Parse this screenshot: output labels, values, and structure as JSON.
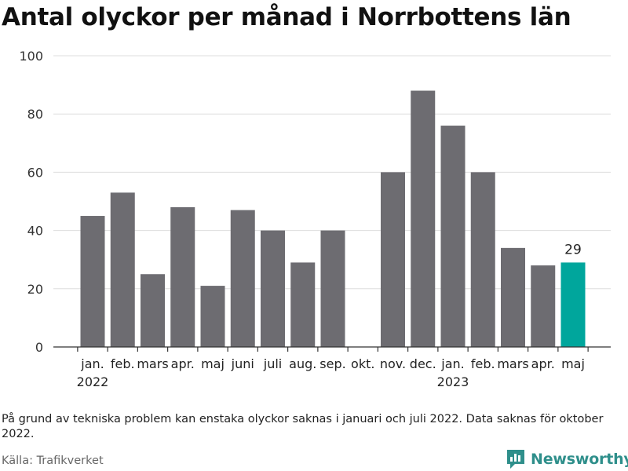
{
  "title": "Antal olyckor per månad i Norrbottens län",
  "note": "På grund av tekniska problem kan enstaka olyckor saknas i januari och juli 2022. Data saknas för oktober 2022.",
  "source": "Källa: Trafikverket",
  "brand": "Newsworthy",
  "colors": {
    "bar": "#6d6c71",
    "highlight": "#00a69c",
    "grid": "#dddddd",
    "axis": "#333333",
    "brand": "#2f8f8b"
  },
  "chart_data": {
    "type": "bar",
    "categories": [
      "jan.",
      "feb.",
      "mars",
      "apr.",
      "maj",
      "juni",
      "juli",
      "aug.",
      "sep.",
      "okt.",
      "nov.",
      "dec.",
      "jan.",
      "feb.",
      "mars",
      "apr.",
      "maj"
    ],
    "year_labels": [
      {
        "index": 0,
        "label": "2022"
      },
      {
        "index": 12,
        "label": "2023"
      }
    ],
    "values": [
      45,
      53,
      25,
      48,
      21,
      47,
      40,
      29,
      40,
      null,
      60,
      88,
      76,
      60,
      34,
      28,
      29
    ],
    "highlight_index": 16,
    "highlight_label": "29",
    "ylim": [
      0,
      100
    ],
    "yticks": [
      0,
      20,
      40,
      60,
      80,
      100
    ],
    "grid": true,
    "xlabel": "",
    "ylabel": ""
  }
}
